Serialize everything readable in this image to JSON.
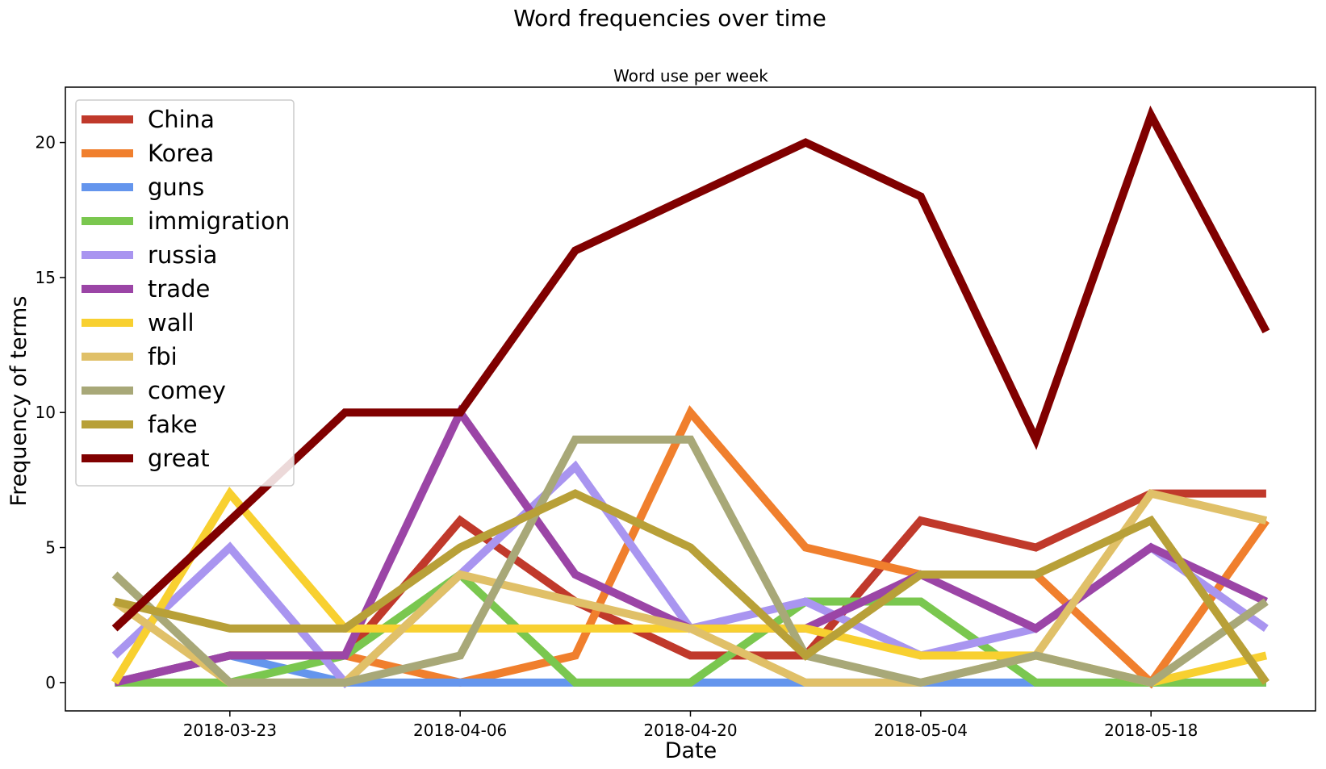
{
  "chart_data": {
    "type": "line",
    "suptitle": "Word frequencies over time",
    "title": "Word use per week",
    "xlabel": "Date",
    "ylabel": "Frequency of terms",
    "x": [
      "2018-03-16",
      "2018-03-23",
      "2018-03-30",
      "2018-04-06",
      "2018-04-13",
      "2018-04-20",
      "2018-04-27",
      "2018-05-04",
      "2018-05-11",
      "2018-05-18",
      "2018-05-25"
    ],
    "x_range": [
      "2018-03-13",
      "2018-05-28"
    ],
    "xticks": [
      "2018-03-23",
      "2018-04-06",
      "2018-04-20",
      "2018-05-04",
      "2018-05-18"
    ],
    "yticks": [
      0,
      5,
      10,
      15,
      20
    ],
    "ylim": [
      -1.05,
      22.05
    ],
    "grid": false,
    "legend_position": "top-left",
    "series": [
      {
        "name": "China",
        "color": "#c0392b",
        "values": [
          0,
          1,
          1,
          6,
          3,
          1,
          1,
          6,
          5,
          7,
          7
        ]
      },
      {
        "name": "Korea",
        "color": "#f07f2d",
        "values": [
          0,
          1,
          1,
          0,
          1,
          10,
          5,
          4,
          4,
          0,
          6
        ]
      },
      {
        "name": "guns",
        "color": "#6495ed",
        "values": [
          0,
          1,
          0,
          0,
          0,
          0,
          0,
          0,
          0,
          0,
          0
        ]
      },
      {
        "name": "immigration",
        "color": "#7ac74f",
        "values": [
          0,
          0,
          1,
          4,
          0,
          0,
          3,
          3,
          0,
          0,
          0
        ]
      },
      {
        "name": "russia",
        "color": "#a995f0",
        "values": [
          1,
          5,
          0,
          4,
          8,
          2,
          3,
          1,
          2,
          5,
          2
        ]
      },
      {
        "name": "trade",
        "color": "#9b45a6",
        "values": [
          0,
          1,
          1,
          10,
          4,
          2,
          2,
          4,
          2,
          5,
          3
        ]
      },
      {
        "name": "wall",
        "color": "#f8d030",
        "values": [
          0,
          7,
          2,
          2,
          2,
          2,
          2,
          1,
          1,
          0,
          1
        ]
      },
      {
        "name": "fbi",
        "color": "#e0c068",
        "values": [
          3,
          0,
          0,
          4,
          3,
          2,
          0,
          0,
          1,
          7,
          6
        ]
      },
      {
        "name": "comey",
        "color": "#a8a878",
        "values": [
          4,
          0,
          0,
          1,
          9,
          9,
          1,
          0,
          1,
          0,
          3
        ]
      },
      {
        "name": "fake",
        "color": "#b8a038",
        "values": [
          3,
          2,
          2,
          5,
          7,
          5,
          1,
          4,
          4,
          6,
          0
        ]
      },
      {
        "name": "great",
        "color": "#800000",
        "values": [
          2,
          6,
          10,
          10,
          16,
          18,
          20,
          18,
          9,
          21,
          13
        ]
      }
    ]
  }
}
